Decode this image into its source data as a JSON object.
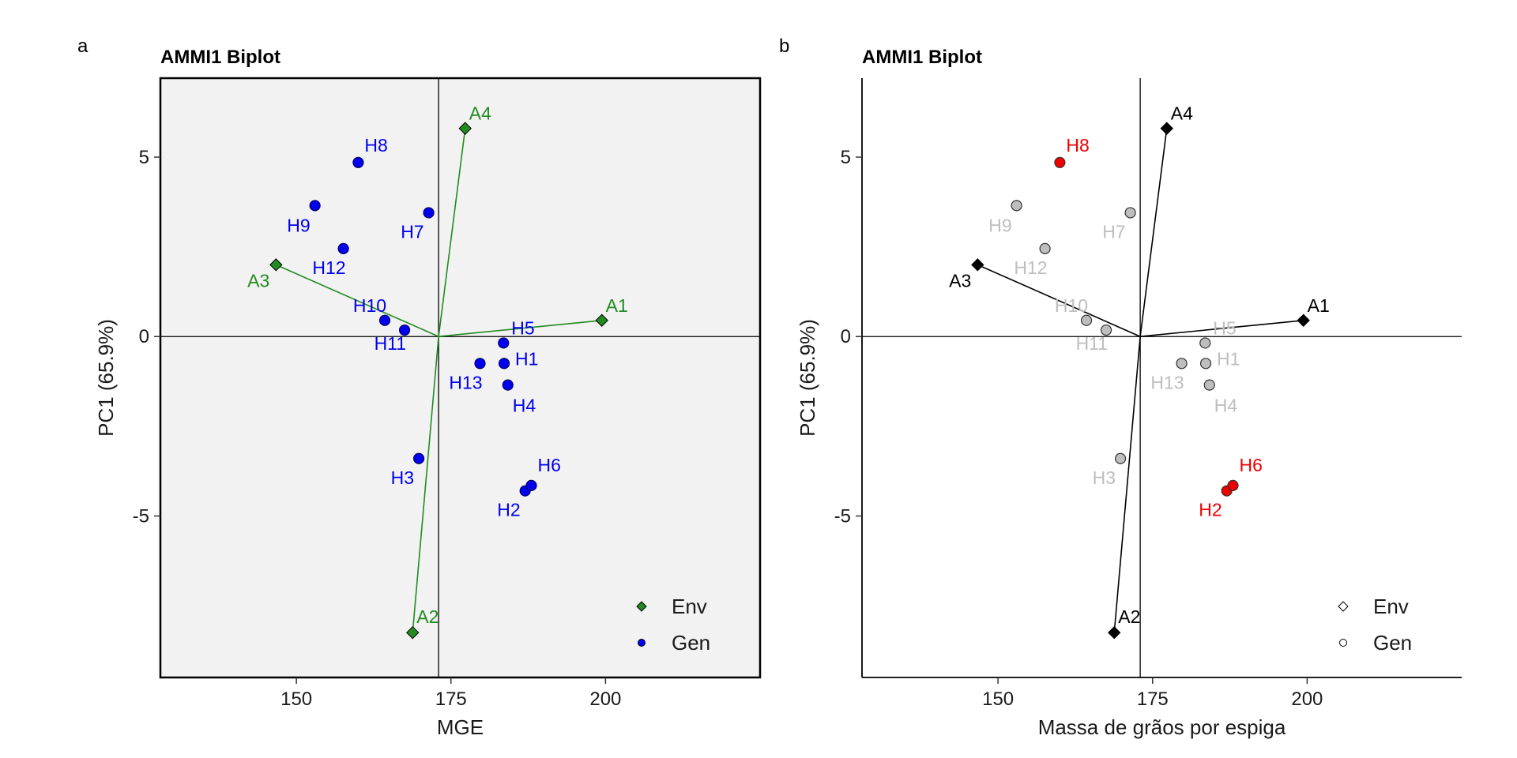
{
  "panel_letters": [
    "a",
    "b"
  ],
  "chart_data": [
    {
      "type": "scatter",
      "panel": "a",
      "title": "AMMI1 Biplot",
      "xlabel": "MGE",
      "ylabel": "PC1 (65.9%)",
      "xlim": [
        128,
        225
      ],
      "ylim": [
        -9.5,
        7.2
      ],
      "xticks": [
        150,
        175,
        200
      ],
      "yticks": [
        5,
        0,
        -5
      ],
      "ref_lines": {
        "x": 173,
        "y": 0
      },
      "background": "#f2f2f2",
      "framed": true,
      "env_color": "#228b22",
      "gen_color": "#0000ee",
      "env_line_color": "#228b22",
      "highlight_color": null,
      "legend": {
        "position": "bottom-right",
        "entries": [
          {
            "name": "Env",
            "shape": "diamond"
          },
          {
            "name": "Gen",
            "shape": "circle"
          }
        ]
      },
      "env": [
        {
          "label": "A1",
          "x": 199.4,
          "y": 0.45
        },
        {
          "label": "A2",
          "x": 168.8,
          "y": -8.25
        },
        {
          "label": "A3",
          "x": 146.7,
          "y": 2.0
        },
        {
          "label": "A4",
          "x": 177.3,
          "y": 5.8
        }
      ],
      "gen": [
        {
          "label": "H1",
          "x": 183.6,
          "y": -0.75
        },
        {
          "label": "H2",
          "x": 187.0,
          "y": -4.3
        },
        {
          "label": "H3",
          "x": 169.8,
          "y": -3.4
        },
        {
          "label": "H4",
          "x": 184.2,
          "y": -1.35
        },
        {
          "label": "H5",
          "x": 183.5,
          "y": -0.18
        },
        {
          "label": "H6",
          "x": 188.0,
          "y": -4.15
        },
        {
          "label": "H7",
          "x": 171.4,
          "y": 3.45
        },
        {
          "label": "H8",
          "x": 160.0,
          "y": 4.85
        },
        {
          "label": "H9",
          "x": 153.0,
          "y": 3.65
        },
        {
          "label": "H10",
          "x": 164.3,
          "y": 0.45
        },
        {
          "label": "H11",
          "x": 167.5,
          "y": 0.18
        },
        {
          "label": "H12",
          "x": 157.6,
          "y": 2.45
        },
        {
          "label": "H13",
          "x": 179.7,
          "y": -0.75
        }
      ]
    },
    {
      "type": "scatter",
      "panel": "b",
      "title": "AMMI1 Biplot",
      "xlabel": "Massa de grãos por espiga",
      "ylabel": "PC1 (65.9%)",
      "xlim": [
        128,
        225
      ],
      "ylim": [
        -9.5,
        7.2
      ],
      "xticks": [
        150,
        175,
        200
      ],
      "yticks": [
        5,
        0,
        -5
      ],
      "ref_lines": {
        "x": 173,
        "y": 0
      },
      "background": "#ffffff",
      "framed": false,
      "env_color": "#000000",
      "gen_color": "#bebebe",
      "env_line_color": "#000000",
      "highlight_color": "#ee0000",
      "highlighted": [
        "H2",
        "H6",
        "H8"
      ],
      "legend": {
        "position": "bottom-right",
        "entries": [
          {
            "name": "Env",
            "shape": "diamond"
          },
          {
            "name": "Gen",
            "shape": "circle"
          }
        ]
      },
      "env": [
        {
          "label": "A1",
          "x": 199.4,
          "y": 0.45
        },
        {
          "label": "A2",
          "x": 168.8,
          "y": -8.25
        },
        {
          "label": "A3",
          "x": 146.7,
          "y": 2.0
        },
        {
          "label": "A4",
          "x": 177.3,
          "y": 5.8
        }
      ],
      "gen": [
        {
          "label": "H1",
          "x": 183.6,
          "y": -0.75
        },
        {
          "label": "H2",
          "x": 187.0,
          "y": -4.3
        },
        {
          "label": "H3",
          "x": 169.8,
          "y": -3.4
        },
        {
          "label": "H4",
          "x": 184.2,
          "y": -1.35
        },
        {
          "label": "H5",
          "x": 183.5,
          "y": -0.18
        },
        {
          "label": "H6",
          "x": 188.0,
          "y": -4.15
        },
        {
          "label": "H7",
          "x": 171.4,
          "y": 3.45
        },
        {
          "label": "H8",
          "x": 160.0,
          "y": 4.85
        },
        {
          "label": "H9",
          "x": 153.0,
          "y": 3.65
        },
        {
          "label": "H10",
          "x": 164.3,
          "y": 0.45
        },
        {
          "label": "H11",
          "x": 167.5,
          "y": 0.18
        },
        {
          "label": "H12",
          "x": 157.6,
          "y": 2.45
        },
        {
          "label": "H13",
          "x": 179.7,
          "y": -0.75
        }
      ]
    }
  ]
}
